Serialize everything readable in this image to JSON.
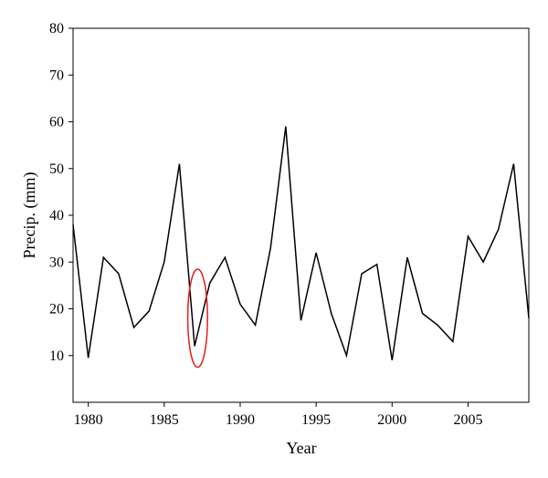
{
  "chart_data": {
    "type": "line",
    "title": "",
    "xlabel": "Year",
    "ylabel": "Precip. (mm)",
    "xlim": [
      1979,
      2009
    ],
    "ylim": [
      0,
      80
    ],
    "x_ticks": [
      1980,
      1985,
      1990,
      1995,
      2000,
      2005
    ],
    "x_tick_labels": [
      "1980",
      "1985",
      "1990",
      "1995",
      "2000",
      "2005"
    ],
    "y_ticks": [
      10,
      20,
      30,
      40,
      50,
      60,
      70,
      80
    ],
    "y_tick_labels": [
      "10",
      "20",
      "30",
      "40",
      "50",
      "60",
      "70",
      "80"
    ],
    "grid": false,
    "series": [
      {
        "color": "#000000",
        "x": [
          1979,
          1980,
          1981,
          1982,
          1983,
          1984,
          1985,
          1986,
          1987,
          1988,
          1989,
          1990,
          1991,
          1992,
          1993,
          1994,
          1995,
          1996,
          1997,
          1998,
          1999,
          2000,
          2001,
          2002,
          2003,
          2004,
          2005,
          2006,
          2007,
          2008,
          2009
        ],
        "values": [
          38,
          9.5,
          31,
          27.5,
          16,
          19.5,
          30,
          51,
          12,
          25.5,
          31,
          21,
          16.5,
          33,
          59,
          17.5,
          32,
          19,
          10,
          27.5,
          29.5,
          9,
          31,
          19,
          16.5,
          13,
          35.5,
          30,
          37,
          51,
          18
        ]
      }
    ],
    "annotation": {
      "shape": "ellipse",
      "color": "#e21f1f",
      "center_x": 1987.2,
      "center_y": 18,
      "rx_years": 0.65,
      "ry_mm": 10.5
    }
  }
}
